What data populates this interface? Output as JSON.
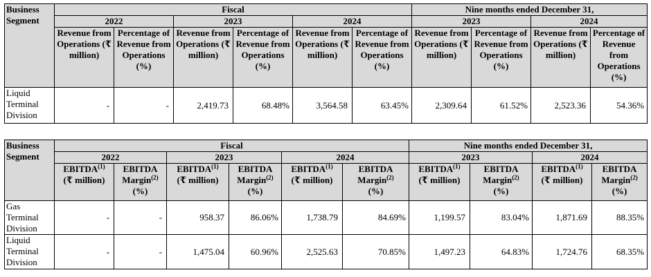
{
  "table1": {
    "segment_header": "Business Segment",
    "fiscal_header": "Fiscal",
    "nine_months_header": "Nine months ended December 31,",
    "years": [
      "2022",
      "2023",
      "2024",
      "2023",
      "2024"
    ],
    "col_revenue": "Revenue from Operations (₹ million)",
    "col_pct": "Percentage of Revenue from Operations (%)",
    "rows": [
      {
        "segment": "Liquid Terminal Division",
        "values": [
          "-",
          "-",
          "2,419.73",
          "68.48%",
          "3,564.58",
          "63.45%",
          "2,309.64",
          "61.52%",
          "2,523.36",
          "54.36%"
        ]
      }
    ]
  },
  "table2": {
    "segment_header": "Business Segment",
    "fiscal_header": "Fiscal",
    "nine_months_header": "Nine months ended December 31,",
    "years": [
      "2022",
      "2023",
      "2024",
      "2023",
      "2024"
    ],
    "col_ebitda": "EBITDA",
    "col_ebitda_note": "(1)",
    "col_ebitda_unit": "(₹ million)",
    "col_margin": "EBITDA Margin",
    "col_margin_note": "(2)",
    "col_margin_unit": "(%)",
    "rows": [
      {
        "segment": "Gas Terminal Division",
        "values": [
          "-",
          "-",
          "958.37",
          "86.06%",
          "1,738.79",
          "84.69%",
          "1,199.57",
          "83.04%",
          "1,871.69",
          "88.35%"
        ]
      },
      {
        "segment": "Liquid Terminal Division",
        "values": [
          "-",
          "-",
          "1,475.04",
          "60.96%",
          "2,525.63",
          "70.85%",
          "1,497.23",
          "64.83%",
          "1,724.76",
          "68.35%"
        ]
      }
    ]
  }
}
